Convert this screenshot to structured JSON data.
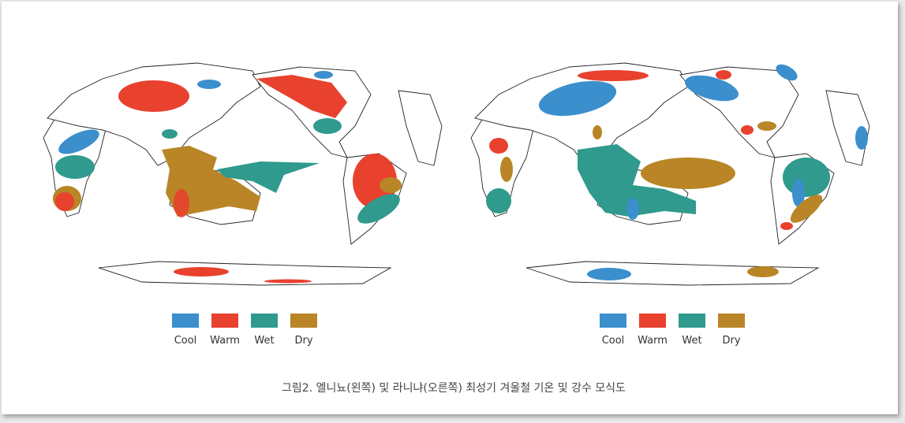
{
  "figures": [
    {
      "legend": [
        {
          "label": "Cool",
          "color": "#3b8fcd"
        },
        {
          "label": "Warm",
          "color": "#e8412e"
        },
        {
          "label": "Wet",
          "color": "#2f9a8d"
        },
        {
          "label": "Dry",
          "color": "#b98526"
        }
      ]
    },
    {
      "legend": [
        {
          "label": "Cool",
          "color": "#3b8fcd"
        },
        {
          "label": "Warm",
          "color": "#e8412e"
        },
        {
          "label": "Wet",
          "color": "#2f9a8d"
        },
        {
          "label": "Dry",
          "color": "#b98526"
        }
      ]
    }
  ],
  "caption": "그림2. 엘니뇨(왼쪽) 및 라니냐(오른쪽) 최성기 겨울철 기온 및 강수 모식도"
}
